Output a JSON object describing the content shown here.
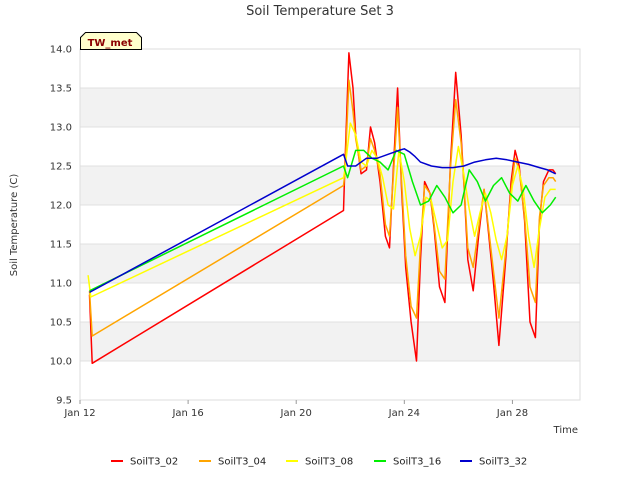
{
  "chart_data": {
    "type": "line",
    "title": "Soil Temperature Set 3",
    "xlabel": "Time",
    "ylabel": "Soil Temperature (C)",
    "badge": "TW_met",
    "xlim": [
      0,
      18.5
    ],
    "ylim": [
      9.5,
      14.0
    ],
    "x_unit": "days since Jan 12",
    "x_ticks": [
      {
        "value": 0,
        "label": "Jan 12"
      },
      {
        "value": 4,
        "label": "Jan 16"
      },
      {
        "value": 8,
        "label": "Jan 20"
      },
      {
        "value": 12,
        "label": "Jan 24"
      },
      {
        "value": 16,
        "label": "Jan 28"
      }
    ],
    "y_ticks": [
      {
        "value": 9.5,
        "label": "9.5"
      },
      {
        "value": 10.0,
        "label": "10.0"
      },
      {
        "value": 10.5,
        "label": "10.5"
      },
      {
        "value": 11.0,
        "label": "11.0"
      },
      {
        "value": 11.5,
        "label": "11.5"
      },
      {
        "value": 12.0,
        "label": "12.0"
      },
      {
        "value": 12.5,
        "label": "12.5"
      },
      {
        "value": 13.0,
        "label": "13.0"
      },
      {
        "value": 13.5,
        "label": "13.5"
      },
      {
        "value": 14.0,
        "label": "14.0"
      }
    ],
    "legend_position": "bottom",
    "grid": true,
    "series": [
      {
        "name": "SoilT3_02",
        "color": "#ff0000",
        "x": [
          0.35,
          0.45,
          9.75,
          9.8,
          9.95,
          10.1,
          10.2,
          10.4,
          10.6,
          10.75,
          10.9,
          11.1,
          11.3,
          11.45,
          11.6,
          11.75,
          11.9,
          12.05,
          12.25,
          12.45,
          12.6,
          12.75,
          12.95,
          13.1,
          13.3,
          13.5,
          13.7,
          13.9,
          14.1,
          14.2,
          14.35,
          14.55,
          14.75,
          14.95,
          15.1,
          15.3,
          15.5,
          15.75,
          15.95,
          16.1,
          16.25,
          16.45,
          16.65,
          16.85,
          17.0,
          17.15,
          17.35,
          17.5,
          17.6
        ],
        "y": [
          10.85,
          9.97,
          11.93,
          12.5,
          13.95,
          13.5,
          12.9,
          12.4,
          12.45,
          13.0,
          12.8,
          12.3,
          11.6,
          11.45,
          12.5,
          13.5,
          12.2,
          11.2,
          10.5,
          10.0,
          11.3,
          12.3,
          12.15,
          11.7,
          10.95,
          10.75,
          12.5,
          13.7,
          12.9,
          12.3,
          11.3,
          10.9,
          11.6,
          12.2,
          11.7,
          11.0,
          10.2,
          11.3,
          12.3,
          12.7,
          12.5,
          11.8,
          10.5,
          10.3,
          11.8,
          12.3,
          12.45,
          12.45,
          12.4
        ]
      },
      {
        "name": "SoilT3_04",
        "color": "#ffa500",
        "x": [
          0.35,
          0.45,
          9.75,
          9.8,
          9.95,
          10.1,
          10.2,
          10.4,
          10.6,
          10.75,
          10.9,
          11.1,
          11.3,
          11.45,
          11.6,
          11.75,
          11.9,
          12.05,
          12.25,
          12.45,
          12.6,
          12.75,
          12.95,
          13.1,
          13.3,
          13.5,
          13.7,
          13.9,
          14.1,
          14.2,
          14.35,
          14.55,
          14.75,
          14.95,
          15.1,
          15.3,
          15.5,
          15.75,
          15.95,
          16.1,
          16.25,
          16.45,
          16.65,
          16.85,
          17.0,
          17.15,
          17.35,
          17.5,
          17.6
        ],
        "y": [
          10.9,
          10.32,
          12.25,
          12.4,
          13.6,
          13.2,
          12.85,
          12.45,
          12.5,
          12.85,
          12.7,
          12.4,
          11.75,
          11.6,
          12.4,
          13.25,
          12.3,
          11.35,
          10.7,
          10.55,
          11.5,
          12.25,
          12.15,
          11.75,
          11.15,
          11.05,
          12.45,
          13.35,
          12.8,
          12.3,
          11.45,
          11.2,
          11.7,
          12.2,
          11.75,
          11.15,
          10.55,
          11.4,
          12.2,
          12.6,
          12.45,
          11.85,
          10.95,
          10.75,
          11.85,
          12.25,
          12.35,
          12.35,
          12.3
        ]
      },
      {
        "name": "SoilT3_08",
        "color": "#ffff00",
        "x": [
          0.3,
          0.4,
          9.75,
          9.8,
          10.0,
          10.2,
          10.4,
          10.6,
          10.8,
          11.0,
          11.2,
          11.4,
          11.6,
          11.8,
          12.0,
          12.2,
          12.4,
          12.6,
          12.8,
          13.0,
          13.2,
          13.4,
          13.6,
          13.8,
          14.0,
          14.2,
          14.4,
          14.6,
          14.8,
          15.0,
          15.2,
          15.4,
          15.6,
          15.8,
          16.0,
          16.2,
          16.4,
          16.6,
          16.8,
          17.0,
          17.2,
          17.4,
          17.6
        ],
        "y": [
          11.1,
          10.82,
          12.35,
          12.45,
          13.05,
          12.9,
          12.55,
          12.5,
          12.7,
          12.6,
          12.35,
          12.0,
          11.95,
          12.7,
          12.3,
          11.7,
          11.35,
          11.6,
          12.1,
          12.05,
          11.75,
          11.45,
          11.55,
          12.3,
          12.75,
          12.4,
          11.95,
          11.6,
          11.9,
          12.15,
          11.9,
          11.55,
          11.3,
          11.6,
          12.25,
          12.5,
          12.2,
          11.6,
          11.2,
          11.7,
          12.1,
          12.2,
          12.2
        ]
      },
      {
        "name": "SoilT3_16",
        "color": "#00ee00",
        "x": [
          0.35,
          9.75,
          9.9,
          10.2,
          10.5,
          10.8,
          11.1,
          11.4,
          11.7,
          12.0,
          12.3,
          12.6,
          12.9,
          13.2,
          13.5,
          13.8,
          14.1,
          14.4,
          14.7,
          15.0,
          15.3,
          15.6,
          15.9,
          16.2,
          16.5,
          16.8,
          17.1,
          17.4,
          17.6
        ],
        "y": [
          10.9,
          12.5,
          12.35,
          12.7,
          12.7,
          12.6,
          12.55,
          12.45,
          12.7,
          12.65,
          12.3,
          12.0,
          12.05,
          12.25,
          12.1,
          11.9,
          12.0,
          12.45,
          12.3,
          12.05,
          12.25,
          12.35,
          12.15,
          12.05,
          12.25,
          12.05,
          11.9,
          12.0,
          12.1
        ]
      },
      {
        "name": "SoilT3_32",
        "color": "#0000cd",
        "x": [
          0.35,
          9.75,
          9.9,
          10.2,
          10.6,
          11.0,
          11.4,
          11.8,
          12.0,
          12.2,
          12.4,
          12.6,
          13.0,
          13.4,
          13.8,
          14.2,
          14.6,
          15.0,
          15.4,
          15.8,
          16.2,
          16.6,
          17.0,
          17.3,
          17.6
        ],
        "y": [
          10.88,
          12.65,
          12.5,
          12.5,
          12.6,
          12.6,
          12.65,
          12.7,
          12.72,
          12.68,
          12.62,
          12.55,
          12.5,
          12.48,
          12.48,
          12.5,
          12.55,
          12.58,
          12.6,
          12.58,
          12.55,
          12.52,
          12.48,
          12.45,
          12.4
        ]
      }
    ]
  }
}
